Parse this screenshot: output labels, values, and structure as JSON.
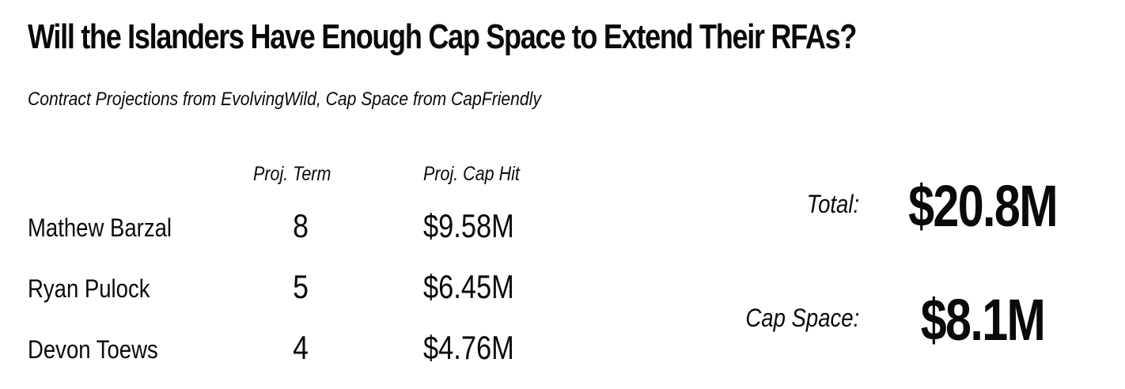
{
  "header": {
    "title": "Will the Islanders Have Enough Cap Space to Extend Their RFAs?",
    "subtitle": "Contract Projections from EvolvingWild, Cap Space from CapFriendly"
  },
  "table": {
    "columns": {
      "term": "Proj. Term",
      "cap_hit": "Proj. Cap Hit"
    },
    "rows": [
      {
        "name": "Mathew Barzal",
        "term": "8",
        "cap_hit": "$9.58M"
      },
      {
        "name": "Ryan Pulock",
        "term": "5",
        "cap_hit": "$6.45M"
      },
      {
        "name": "Devon Toews",
        "term": "4",
        "cap_hit": "$4.76M"
      }
    ]
  },
  "summary": {
    "total_label": "Total:",
    "total_value": "$20.8M",
    "cap_space_label": "Cap Space:",
    "cap_space_value": "$8.1M"
  }
}
